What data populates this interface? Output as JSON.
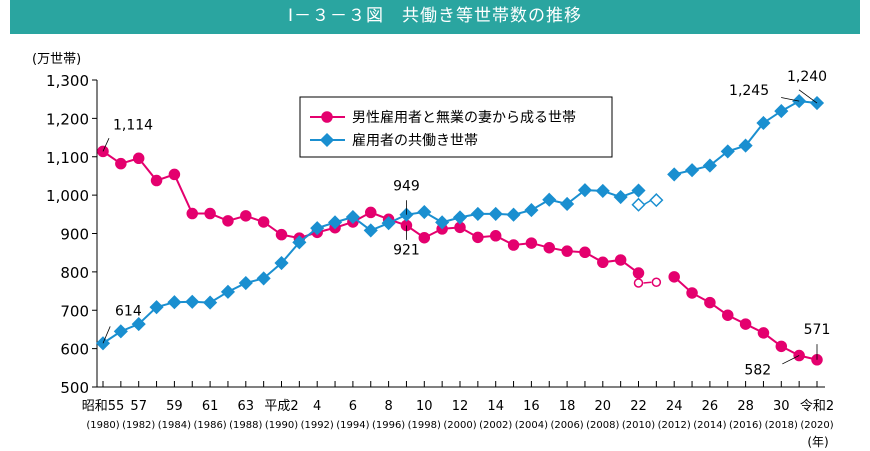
{
  "title": "Ⅰ－３－３図　共働き等世帯数の推移",
  "chart_data": {
    "type": "line",
    "ylabel": "(万世帯)",
    "xlabel": "(年)",
    "ylim": [
      500,
      1300
    ],
    "yticks": [
      500,
      600,
      700,
      800,
      900,
      1000,
      1100,
      1200,
      1300
    ],
    "ytick_labels": [
      "500",
      "600",
      "700",
      "800",
      "900",
      "1,000",
      "1,100",
      "1,200",
      "1,300"
    ],
    "x": [
      1980,
      1981,
      1982,
      1983,
      1984,
      1985,
      1986,
      1987,
      1988,
      1989,
      1990,
      1991,
      1992,
      1993,
      1994,
      1995,
      1996,
      1997,
      1998,
      1999,
      2000,
      2001,
      2002,
      2003,
      2004,
      2005,
      2006,
      2007,
      2008,
      2009,
      2010,
      2011,
      2012,
      2013,
      2014,
      2015,
      2016,
      2017,
      2018,
      2019,
      2020
    ],
    "xtick_years": [
      1980,
      1982,
      1984,
      1986,
      1988,
      1990,
      1992,
      1994,
      1996,
      1998,
      2000,
      2002,
      2004,
      2006,
      2008,
      2010,
      2012,
      2014,
      2016,
      2018,
      2020
    ],
    "xtick_era": [
      "昭和55",
      "57",
      "59",
      "61",
      "63",
      "平成2",
      "4",
      "6",
      "8",
      "10",
      "12",
      "14",
      "16",
      "18",
      "20",
      "22",
      "24",
      "26",
      "28",
      "30",
      "令和2"
    ],
    "xtick_ad": [
      "(1980)",
      "(1982)",
      "(1984)",
      "(1986)",
      "(1988)",
      "(1990)",
      "(1992)",
      "(1994)",
      "(1996)",
      "(1998)",
      "(2000)",
      "(2002)",
      "(2004)",
      "(2006)",
      "(2008)",
      "(2010)",
      "(2012)",
      "(2014)",
      "(2016)",
      "(2018)",
      "(2020)"
    ],
    "legend_position": "top-center",
    "series": [
      {
        "name": "男性雇用者と無業の妻から成る世帯",
        "color": "#e4006e",
        "marker": "circle",
        "values": [
          1114,
          1082,
          1096,
          1038,
          1054,
          952,
          952,
          933,
          946,
          930,
          897,
          888,
          903,
          915,
          930,
          955,
          937,
          921,
          889,
          912,
          916,
          890,
          894,
          870,
          875,
          863,
          854,
          851,
          825,
          831,
          797,
          null,
          787,
          745,
          720,
          687,
          664,
          641,
          606,
          582,
          571
        ],
        "hollow": [
          {
            "x": 2010,
            "y": 771
          },
          {
            "x": 2011,
            "y": 773
          }
        ]
      },
      {
        "name": "雇用者の共働き世帯",
        "color": "#1a8fd0",
        "marker": "diamond",
        "values": [
          614,
          645,
          664,
          708,
          721,
          722,
          720,
          748,
          771,
          783,
          823,
          877,
          914,
          929,
          943,
          908,
          927,
          949,
          956,
          929,
          942,
          951,
          951,
          949,
          961,
          988,
          977,
          1013,
          1011,
          995,
          1012,
          null,
          1054,
          1065,
          1077,
          1114,
          1129,
          1188,
          1219,
          1245,
          1240
        ],
        "hollow": [
          {
            "x": 2010,
            "y": 975
          },
          {
            "x": 2011,
            "y": 987
          }
        ]
      }
    ],
    "annotations": [
      {
        "x": 1980,
        "series": 0,
        "text": "1,114"
      },
      {
        "x": 1980,
        "series": 1,
        "text": "614"
      },
      {
        "x": 1997,
        "series": 1,
        "text": "949"
      },
      {
        "x": 1997,
        "series": 0,
        "text": "921"
      },
      {
        "x": 2019,
        "series": 1,
        "text": "1,245"
      },
      {
        "x": 2020,
        "series": 1,
        "text": "1,240"
      },
      {
        "x": 2019,
        "series": 0,
        "text": "582"
      },
      {
        "x": 2020,
        "series": 0,
        "text": "571"
      }
    ]
  }
}
